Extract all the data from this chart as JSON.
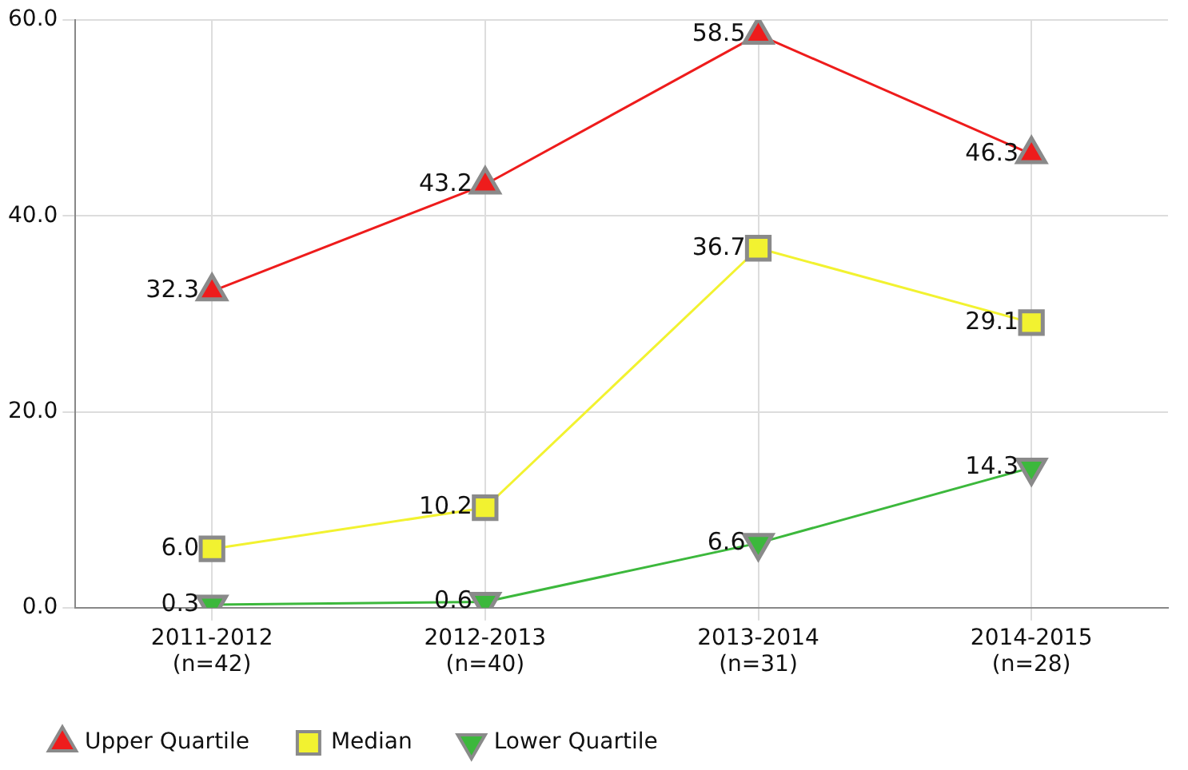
{
  "chart_data": {
    "type": "line",
    "categories": [
      "2011-2012\n(n=42)",
      "2012-2013\n(n=40)",
      "2013-2014\n(n=31)",
      "2014-2015\n(n=28)"
    ],
    "series": [
      {
        "name": "Upper Quartile",
        "color": "#ee1c1c",
        "marker": "triangle",
        "values": [
          32.3,
          43.2,
          58.5,
          46.3
        ],
        "value_labels": [
          "32.3",
          "43.2",
          "58.5",
          "46.3"
        ]
      },
      {
        "name": "Median",
        "color": "#f2f230",
        "marker": "square",
        "values": [
          6.0,
          10.2,
          36.7,
          29.1
        ],
        "value_labels": [
          "6.0",
          "10.2",
          "36.7",
          "29.1"
        ]
      },
      {
        "name": "Lower Quartile",
        "color": "#3cb83c",
        "marker": "triangle-down",
        "values": [
          0.3,
          0.6,
          6.6,
          14.3
        ],
        "value_labels": [
          "0.3",
          "0.6",
          "6.6",
          "14.3"
        ]
      }
    ],
    "ylim": [
      0,
      60
    ],
    "yticks": [
      {
        "value": 0,
        "label": "0.0"
      },
      {
        "value": 20,
        "label": "20.0"
      },
      {
        "value": 40,
        "label": "40.0"
      },
      {
        "value": 60,
        "label": "60.0"
      }
    ],
    "grid": true,
    "legend": "bottom left"
  }
}
